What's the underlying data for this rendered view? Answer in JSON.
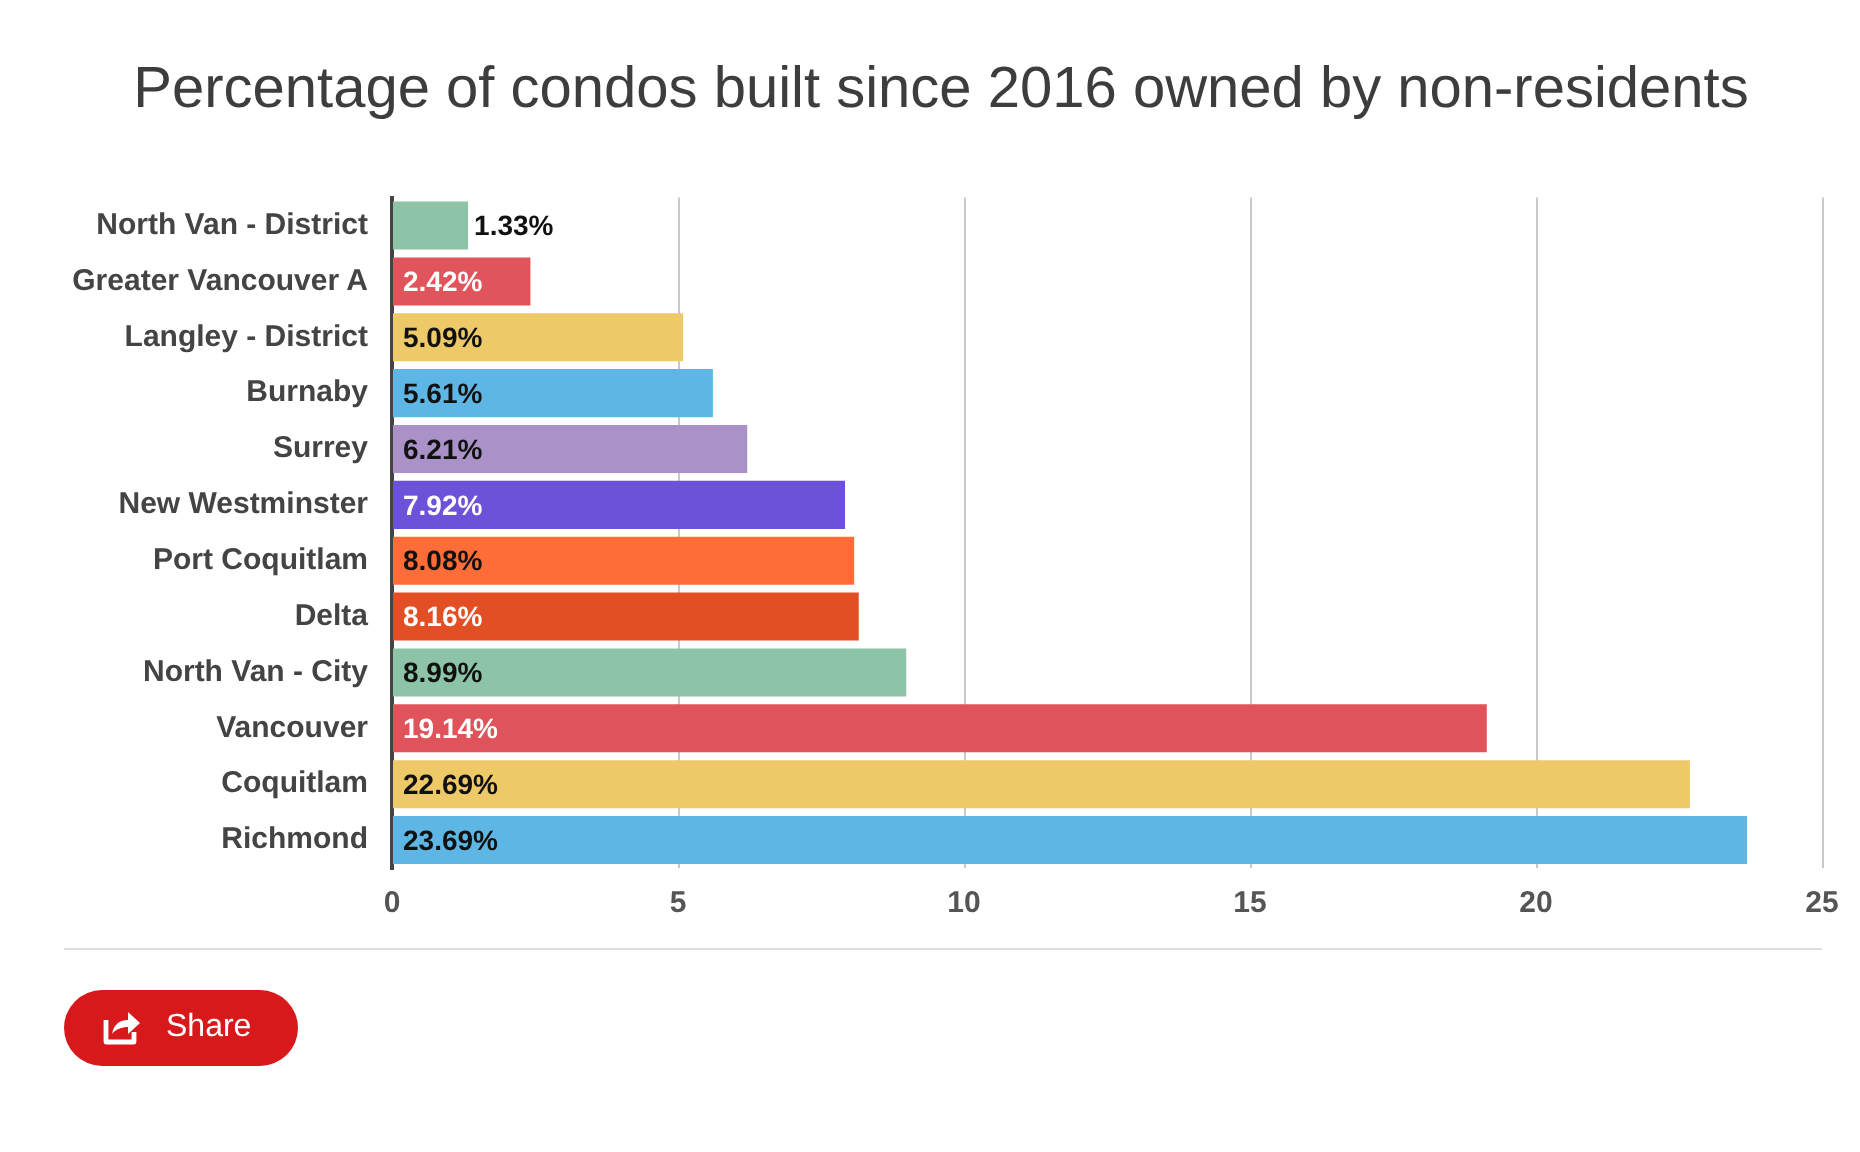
{
  "chart_data": {
    "type": "bar",
    "orientation": "horizontal",
    "title": "Percentage of condos built since 2016 owned by non-residents",
    "categories": [
      "North Van - District",
      "Greater Vancouver A",
      "Langley - District",
      "Burnaby",
      "Surrey",
      "New Westminster",
      "Port Coquitlam",
      "Delta",
      "North Van - City",
      "Vancouver",
      "Coquitlam",
      "Richmond"
    ],
    "values": [
      1.33,
      2.42,
      5.09,
      5.61,
      6.21,
      7.92,
      8.08,
      8.16,
      8.99,
      19.14,
      22.69,
      23.69
    ],
    "colors": [
      "#8dc3a7",
      "#e0545b",
      "#edc967",
      "#5db6e3",
      "#aa91c7",
      "#6c52d8",
      "#fe6c38",
      "#e34f25",
      "#8dc3a7",
      "#df545a",
      "#edc967",
      "#5db6e3"
    ],
    "value_labels": [
      "1.33%",
      "2.42%",
      "5.09%",
      "5.61%",
      "6.21%",
      "7.92%",
      "8.08%",
      "8.16%",
      "8.99%",
      "19.14%",
      "22.69%",
      "23.69%"
    ],
    "xlim": [
      0,
      25
    ],
    "xticks": [
      0,
      5,
      10,
      15,
      20,
      25
    ],
    "grid": "x",
    "annotations": [
      "Share"
    ]
  }
}
